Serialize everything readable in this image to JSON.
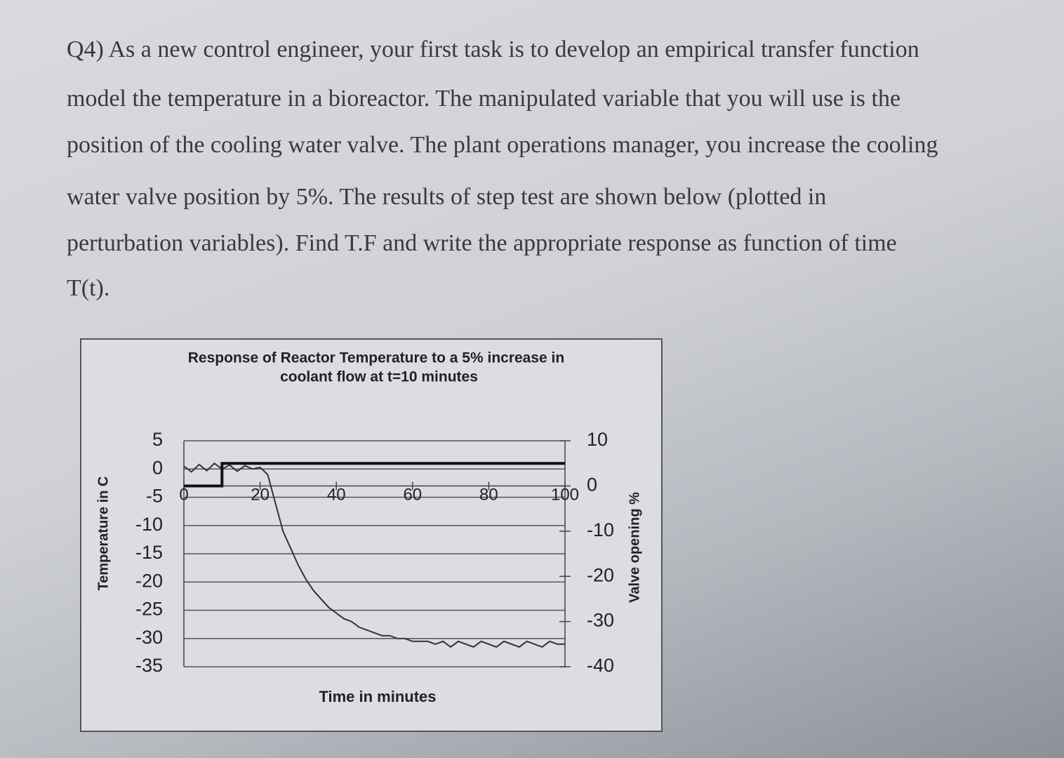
{
  "question": {
    "lines": [
      "Q4) As a new control engineer, your first task is to develop an empirical transfer function",
      "model the temperature in a bioreactor. The manipulated variable that you will use is the",
      "position of the cooling water valve. The plant operations manager, you increase the cooling",
      "water valve position by 5%. The results of step test are shown below (plotted in",
      "perturbation variables). Find T.F and write the appropriate response as function of time",
      "T(t)."
    ]
  },
  "chart_data": {
    "type": "line",
    "title_lines": [
      "Response of Reactor Temperature to a 5% increase in",
      "coolant flow at t=10 minutes"
    ],
    "x_label": "Time in minutes",
    "y_label": "Temperature in C",
    "y2_label": "Valve opening %",
    "xlim": [
      0,
      100
    ],
    "xticks": [
      0,
      20,
      40,
      60,
      80,
      100
    ],
    "ylim": [
      -35,
      5
    ],
    "yticks": [
      5,
      0,
      -5,
      -10,
      -15,
      -20,
      -25,
      -30,
      -35
    ],
    "y2lim": [
      -40,
      10
    ],
    "y2ticks": [
      10,
      0,
      -10,
      -20,
      -30,
      -40
    ],
    "grid": true,
    "series": [
      {
        "color": "#333333",
        "x": [
          0,
          2,
          4,
          6,
          8,
          10,
          12,
          14,
          16,
          18,
          20,
          22,
          24,
          26,
          28,
          30,
          32,
          34,
          36,
          38,
          40,
          42,
          44,
          46,
          48,
          50,
          52,
          54,
          56,
          58,
          60,
          62,
          64,
          66,
          68,
          70,
          72,
          74,
          76,
          78,
          80,
          82,
          84,
          86,
          88,
          90,
          92,
          94,
          96,
          98,
          100
        ],
        "values": [
          0.5,
          -0.5,
          0.8,
          -0.3,
          1,
          0,
          0.7,
          -0.4,
          0.6,
          0,
          0.3,
          -1,
          -6,
          -11,
          -14,
          -17,
          -19.5,
          -21.5,
          -23,
          -24.5,
          -25.5,
          -26.5,
          -27,
          -28,
          -28.5,
          -29,
          -29.5,
          -29.5,
          -30,
          -30,
          -30.5,
          -30.5,
          -30.5,
          -31,
          -30.5,
          -31.5,
          -30.5,
          -31,
          -31.5,
          -30.5,
          -31,
          -31.5,
          -30.5,
          -31,
          -31.5,
          -30.5,
          -31,
          -31.5,
          -30.5,
          -31,
          -31
        ]
      },
      {
        "color": "#111111",
        "axis": "y2",
        "x": [
          0,
          10,
          10,
          100
        ],
        "values": [
          0,
          0,
          5,
          5
        ]
      }
    ]
  }
}
